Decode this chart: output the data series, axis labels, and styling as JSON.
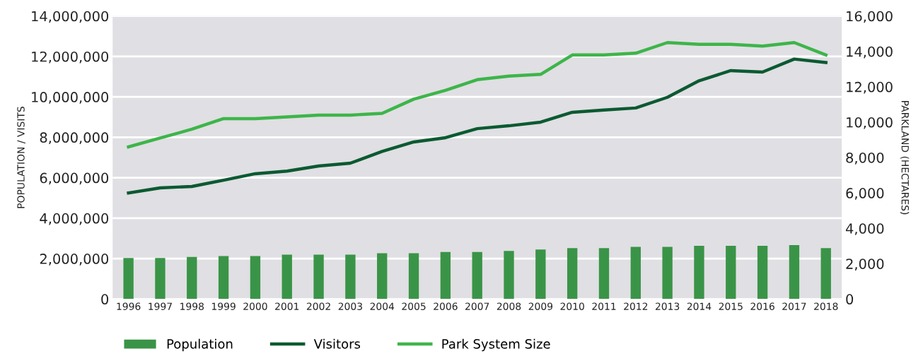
{
  "chart_data": {
    "type": "bar",
    "ylabel": "POPULATION / VISITS",
    "y2label": "PARKLAND (HECTARES)",
    "categories": [
      "1996",
      "1997",
      "1998",
      "1999",
      "2000",
      "2001",
      "2002",
      "2003",
      "2004",
      "2005",
      "2006",
      "2007",
      "2008",
      "2009",
      "2010",
      "2011",
      "2012",
      "2013",
      "2014",
      "2015",
      "2016",
      "2017",
      "2018"
    ],
    "series": [
      {
        "name": "Population",
        "color": "#3a9447",
        "values": [
          2030000,
          2030000,
          2080000,
          2130000,
          2130000,
          2200000,
          2200000,
          2200000,
          2270000,
          2270000,
          2330000,
          2330000,
          2380000,
          2450000,
          2520000,
          2520000,
          2580000,
          2580000,
          2630000,
          2630000,
          2630000,
          2670000,
          2520000
        ]
      },
      {
        "name": "Visitors",
        "type": "line",
        "color": "#0b5a32",
        "values": [
          5250000,
          5500000,
          5570000,
          5880000,
          6200000,
          6330000,
          6580000,
          6720000,
          7300000,
          7770000,
          7980000,
          8430000,
          8570000,
          8750000,
          9240000,
          9350000,
          9450000,
          9980000,
          10800000,
          11300000,
          11230000,
          11870000,
          11700000
        ]
      },
      {
        "name": "Park System Size",
        "type": "line",
        "axis": "y2",
        "color": "#3db54a",
        "values": [
          8600,
          9100,
          9600,
          10200,
          10200,
          10300,
          10400,
          10400,
          10500,
          11300,
          11800,
          12400,
          12600,
          12700,
          13800,
          13800,
          13900,
          14500,
          14400,
          14400,
          14300,
          14500,
          13800
        ]
      }
    ],
    "ylim": [
      0,
      14000000
    ],
    "yticks": [
      {
        "value": 0,
        "label": "0"
      },
      {
        "value": 2000000,
        "label": "2,000,000"
      },
      {
        "value": 4000000,
        "label": "4,000,000"
      },
      {
        "value": 6000000,
        "label": "6,000,000"
      },
      {
        "value": 8000000,
        "label": "8,000,000"
      },
      {
        "value": 10000000,
        "label": "10,000,000"
      },
      {
        "value": 12000000,
        "label": "12,000,000"
      },
      {
        "value": 14000000,
        "label": "14,000,000"
      }
    ],
    "y2lim": [
      0,
      16000
    ],
    "y2ticks": [
      {
        "value": 0,
        "label": "0"
      },
      {
        "value": 2000,
        "label": "2,000"
      },
      {
        "value": 4000,
        "label": "4,000"
      },
      {
        "value": 6000,
        "label": "6,000"
      },
      {
        "value": 8000,
        "label": "8,000"
      },
      {
        "value": 10000,
        "label": "10,000"
      },
      {
        "value": 12000,
        "label": "12,000"
      },
      {
        "value": 14000,
        "label": "14,000"
      },
      {
        "value": 16000,
        "label": "16,000"
      }
    ],
    "grid": "y",
    "legend": "bottom left",
    "marker": "none",
    "line_style": "solid"
  }
}
